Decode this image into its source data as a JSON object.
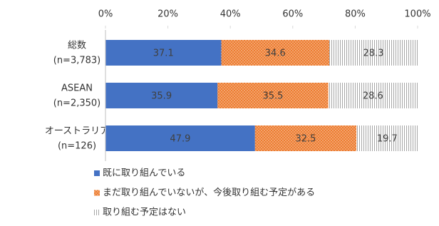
{
  "chart_data": {
    "type": "stacked-barh",
    "categories": [
      [
        "総数",
        "(n=3,783)"
      ],
      [
        "ASEAN",
        "(n=2,350)"
      ],
      [
        "オーストラリア",
        "(n=126)"
      ]
    ],
    "series": [
      {
        "name": "既に取り組んでいる",
        "color": "#4472c4",
        "pattern": "solid",
        "values": [
          37.1,
          35.9,
          47.9
        ]
      },
      {
        "name": "まだ取り組んでいないが、今後取り組む予定がある",
        "color": "#ed7d31",
        "pattern": "dots",
        "values": [
          34.6,
          35.5,
          32.5
        ]
      },
      {
        "name": "取り組む予定はない",
        "color": "#a6a6a6",
        "pattern": "vertical-lines",
        "values": [
          28.3,
          28.6,
          19.7
        ]
      }
    ],
    "xlim": [
      0,
      100
    ],
    "xticks": [
      {
        "value": 0,
        "label": "0%"
      },
      {
        "value": 20,
        "label": "20%"
      },
      {
        "value": 40,
        "label": "40%"
      },
      {
        "value": 60,
        "label": "60%"
      },
      {
        "value": 80,
        "label": "80%"
      },
      {
        "value": 100,
        "label": "100%"
      }
    ],
    "legend": "bottom-left"
  }
}
